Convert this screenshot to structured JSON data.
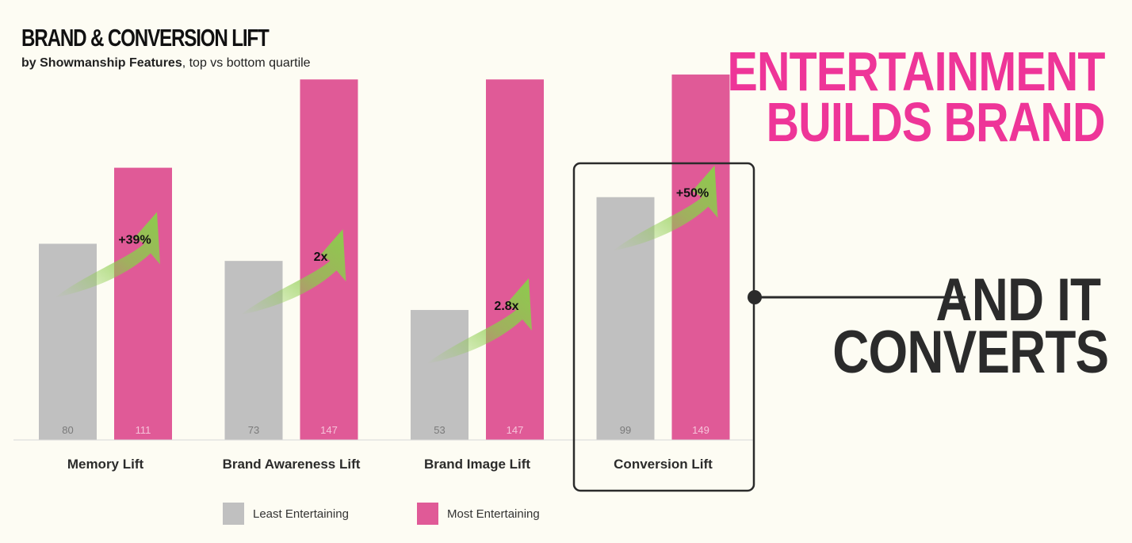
{
  "title": "BRAND & CONVERSION LIFT",
  "subtitle": {
    "bold": "by Showmanship Features",
    "rest": ", top vs bottom quartile"
  },
  "headline": {
    "line1": "ENTERTAINMENT",
    "line2": "BUILDS BRAND"
  },
  "callout": {
    "line1": "AND IT",
    "line2": "CONVERTS"
  },
  "colors": {
    "least": "#c0c0c0",
    "most": "#e05a97",
    "arrow": "#8ccc4c",
    "headline": "#ee3598",
    "callout": "#2b2b2b"
  },
  "legend": {
    "least": "Least Entertaining",
    "most": "Most Entertaining"
  },
  "chart_data": {
    "type": "bar",
    "categories": [
      "Memory Lift",
      "Brand Awareness Lift",
      "Brand Image Lift",
      "Conversion Lift"
    ],
    "series": [
      {
        "name": "Least Entertaining",
        "values": [
          80,
          73,
          53,
          99
        ]
      },
      {
        "name": "Most Entertaining",
        "values": [
          111,
          147,
          147,
          149
        ]
      }
    ],
    "lift_labels": [
      "+39%",
      "2x",
      "2.8x",
      "+50%"
    ],
    "highlighted_category": "Conversion Lift",
    "ylim": [
      0,
      160
    ]
  }
}
